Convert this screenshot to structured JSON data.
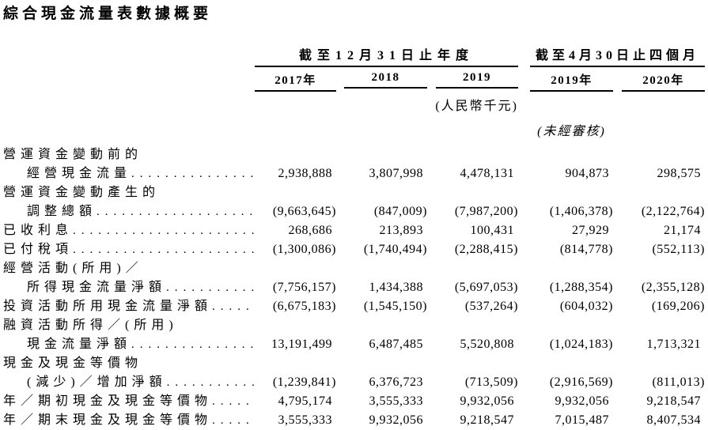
{
  "title": "綜合現金流量表數據概要",
  "colors": {
    "text": "#000000",
    "background": "#ffffff",
    "rule": "#000000"
  },
  "table": {
    "col_groups": [
      {
        "label": "截至12月31日止年度",
        "cols": [
          "2017年",
          "2018",
          "2019"
        ]
      },
      {
        "label": "截至4月30日止四個月",
        "cols": [
          "2019年",
          "2020年"
        ]
      }
    ],
    "unit_note": "(人民幣千元)",
    "audit_note": "(未經審核)",
    "rows": [
      {
        "label_lines": [
          {
            "text": "營運資金變動前的",
            "indent": false,
            "leader": false
          },
          {
            "text": "經營現金流量",
            "indent": true,
            "leader": true
          }
        ],
        "values": [
          "2,938,888",
          "3,807,998",
          "4,478,131",
          "904,873",
          "298,575"
        ]
      },
      {
        "label_lines": [
          {
            "text": "營運資金變動產生的",
            "indent": false,
            "leader": false
          },
          {
            "text": "調整總額",
            "indent": true,
            "leader": true
          }
        ],
        "values": [
          "(9,663,645)",
          "(847,009)",
          "(7,987,200)",
          "(1,406,378)",
          "(2,122,764)"
        ]
      },
      {
        "label_lines": [
          {
            "text": "已收利息",
            "indent": false,
            "leader": true
          }
        ],
        "values": [
          "268,686",
          "213,893",
          "100,431",
          "27,929",
          "21,174"
        ]
      },
      {
        "label_lines": [
          {
            "text": "已付稅項",
            "indent": false,
            "leader": true
          }
        ],
        "values": [
          "(1,300,086)",
          "(1,740,494)",
          "(2,288,415)",
          "(814,778)",
          "(552,113)"
        ]
      },
      {
        "label_lines": [
          {
            "text": "經營活動(所用)／",
            "indent": false,
            "leader": false
          },
          {
            "text": "所得現金流量淨額",
            "indent": true,
            "leader": true
          }
        ],
        "values": [
          "(7,756,157)",
          "1,434,388",
          "(5,697,053)",
          "(1,288,354)",
          "(2,355,128)"
        ]
      },
      {
        "label_lines": [
          {
            "text": "投資活動所用現金流量淨額",
            "indent": false,
            "leader": true
          }
        ],
        "values": [
          "(6,675,183)",
          "(1,545,150)",
          "(537,264)",
          "(604,032)",
          "(169,206)"
        ]
      },
      {
        "label_lines": [
          {
            "text": "融資活動所得／(所用)",
            "indent": false,
            "leader": false
          },
          {
            "text": "現金流量淨額",
            "indent": true,
            "leader": true
          }
        ],
        "values": [
          "13,191,499",
          "6,487,485",
          "5,520,808",
          "(1,024,183)",
          "1,713,321"
        ]
      },
      {
        "label_lines": [
          {
            "text": "現金及現金等價物",
            "indent": false,
            "leader": false
          },
          {
            "text": "(減少)／增加淨額",
            "indent": true,
            "leader": true
          }
        ],
        "values": [
          "(1,239,841)",
          "6,376,723",
          "(713,509)",
          "(2,916,569)",
          "(811,013)"
        ]
      },
      {
        "label_lines": [
          {
            "text": "年／期初現金及現金等價物",
            "indent": false,
            "leader": true
          }
        ],
        "values": [
          "4,795,174",
          "3,555,333",
          "9,932,056",
          "9,932,056",
          "9,218,547"
        ]
      },
      {
        "label_lines": [
          {
            "text": "年／期末現金及現金等價物",
            "indent": false,
            "leader": true
          }
        ],
        "values": [
          "3,555,333",
          "9,932,056",
          "9,218,547",
          "7,015,487",
          "8,407,534"
        ]
      }
    ]
  }
}
